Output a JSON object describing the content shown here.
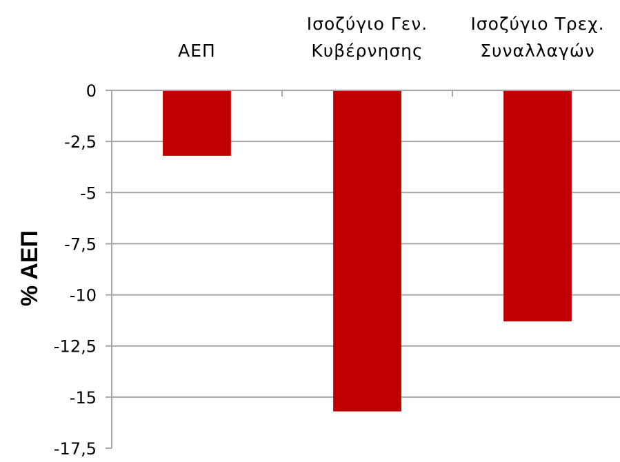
{
  "chart_data": {
    "type": "bar",
    "categories": [
      [
        "ΑΕΠ"
      ],
      [
        "Ισοζύγιο Γεν.",
        "Κυβέρνησης"
      ],
      [
        "Ισοζύγιο Τρεχ.",
        "Συναλλαγών"
      ]
    ],
    "values": [
      -3.2,
      -15.7,
      -11.3
    ],
    "ylabel": "% ΑΕΠ",
    "ylim": [
      -17.5,
      0
    ],
    "ticks": [
      0,
      -2.5,
      -5,
      -7.5,
      -10,
      -12.5,
      -15,
      -17.5
    ],
    "tick_labels": [
      "0",
      "-2,5",
      "-5",
      "-7,5",
      "-10",
      "-12,5",
      "-15",
      "-17,5"
    ],
    "grid": true,
    "legend": "none",
    "category_axis_position": "top",
    "bar_color": "#c00000",
    "grid_color": "#a6a6a6"
  }
}
